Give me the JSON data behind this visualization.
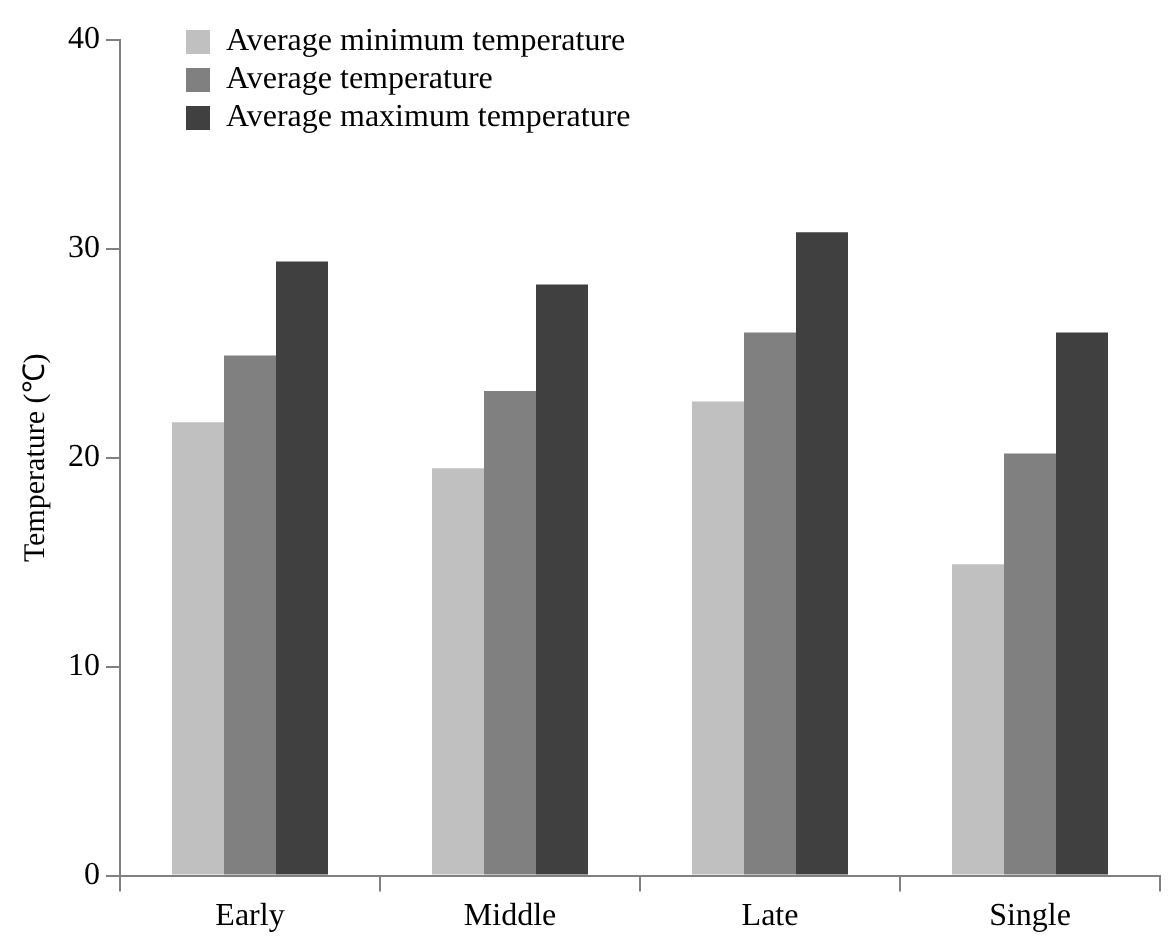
{
  "chart_data": {
    "type": "bar",
    "ylabel": "Temperature (℃)",
    "categories": [
      "Early",
      "Middle",
      "Late",
      "Single"
    ],
    "series": [
      {
        "name": "Average minimum temperature",
        "color": "#c0c0c0",
        "values": [
          21.7,
          19.5,
          22.7,
          14.9
        ]
      },
      {
        "name": "Average temperature",
        "color": "#808080",
        "values": [
          24.9,
          23.2,
          26.0,
          20.2
        ]
      },
      {
        "name": "Average maximum temperature",
        "color": "#404040",
        "values": [
          29.4,
          28.3,
          30.8,
          26.0
        ]
      }
    ],
    "ylim": [
      0,
      40
    ],
    "yticks": [
      0,
      10,
      20,
      30,
      40
    ],
    "grid": false,
    "legend": "top left"
  }
}
